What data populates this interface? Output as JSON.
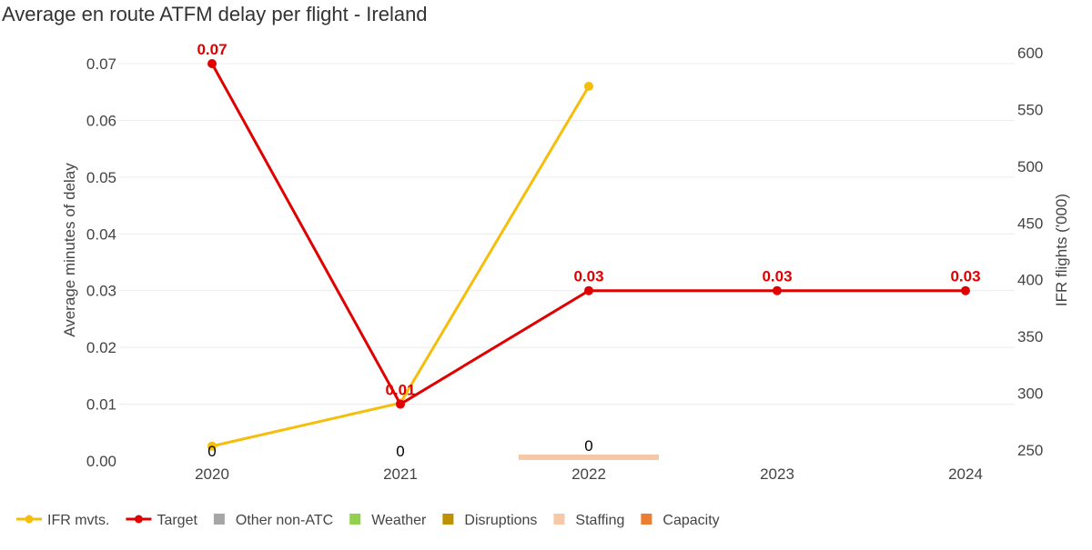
{
  "chart_data": {
    "type": "line",
    "title": "Average en route ATFM delay per flight - Ireland",
    "ylabel": "Average minutes of delay",
    "y2label": "IFR flights ('000)",
    "categories": [
      "2020",
      "2021",
      "2022",
      "2023",
      "2024"
    ],
    "ylim": [
      0,
      0.07
    ],
    "y2lim": [
      250,
      600
    ],
    "yticks": [
      "0.00",
      "0.01",
      "0.02",
      "0.03",
      "0.04",
      "0.05",
      "0.06",
      "0.07"
    ],
    "y2ticks": [
      "250",
      "300",
      "350",
      "400",
      "450",
      "500",
      "550",
      "600"
    ],
    "grid": true,
    "legend_position": "bottom-left",
    "series": [
      {
        "name": "IFR mvts.",
        "axis": "right",
        "color": "#f5be0b",
        "values": [
          263,
          301,
          580,
          null,
          null
        ]
      },
      {
        "name": "Target",
        "axis": "left",
        "color": "#e00000",
        "values": [
          0.07,
          0.01,
          0.03,
          0.03,
          0.03
        ],
        "labels": [
          "0.07",
          "0.01",
          "0.03",
          "0.03",
          "0.03"
        ]
      }
    ],
    "bars": [
      {
        "name": "Staffing",
        "color": "#f7c8a8",
        "category": "2022",
        "value": 0,
        "label": "0"
      }
    ],
    "total_labels": [
      {
        "category": "2020",
        "label": "0"
      },
      {
        "category": "2021",
        "label": "0"
      },
      {
        "category": "2022",
        "label": "0"
      }
    ],
    "legend": [
      {
        "name": "IFR mvts.",
        "kind": "line",
        "color": "#f5be0b"
      },
      {
        "name": "Target",
        "kind": "line",
        "color": "#e00000"
      },
      {
        "name": "Other non-ATC",
        "kind": "square",
        "color": "#a6a6a6"
      },
      {
        "name": "Weather",
        "kind": "square",
        "color": "#92d050"
      },
      {
        "name": "Disruptions",
        "kind": "square",
        "color": "#bf9000"
      },
      {
        "name": "Staffing",
        "kind": "square",
        "color": "#f7c8a8"
      },
      {
        "name": "Capacity",
        "kind": "square",
        "color": "#ed7d31"
      }
    ]
  }
}
